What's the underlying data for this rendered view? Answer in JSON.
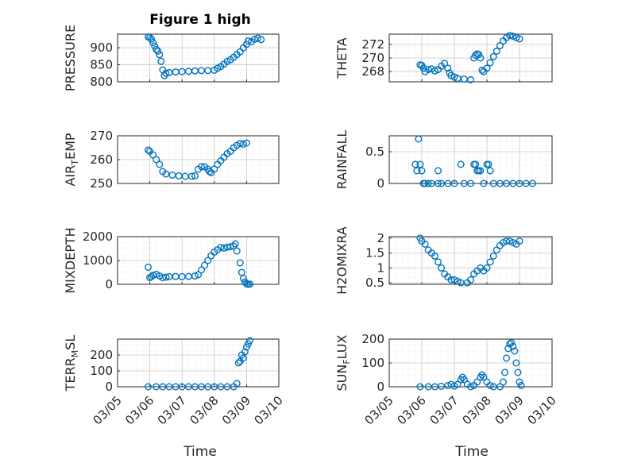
{
  "figure": {
    "title": "Figure 1 high",
    "xlabel": "Time"
  },
  "chart_data": [
    {
      "type": "scatter",
      "ylabel": "PRESSURE",
      "ylim": [
        800,
        940
      ],
      "yticks": [
        800,
        850,
        900
      ],
      "xlim": [
        0,
        5
      ],
      "xticklabels": [
        "03/05",
        "03/06",
        "03/07",
        "03/08",
        "03/09",
        "03/10"
      ],
      "grid": true,
      "marker_color": "#0072BD",
      "points": [
        [
          0.95,
          932
        ],
        [
          1.0,
          930
        ],
        [
          1.05,
          925
        ],
        [
          1.1,
          915
        ],
        [
          1.15,
          905
        ],
        [
          1.2,
          895
        ],
        [
          1.25,
          890
        ],
        [
          1.3,
          880
        ],
        [
          1.35,
          860
        ],
        [
          1.4,
          835
        ],
        [
          1.45,
          818
        ],
        [
          1.5,
          825
        ],
        [
          1.6,
          827
        ],
        [
          1.8,
          829
        ],
        [
          2.0,
          830
        ],
        [
          2.2,
          831
        ],
        [
          2.4,
          832
        ],
        [
          2.6,
          833
        ],
        [
          2.8,
          833
        ],
        [
          3.0,
          834
        ],
        [
          3.1,
          840
        ],
        [
          3.2,
          845
        ],
        [
          3.3,
          852
        ],
        [
          3.4,
          860
        ],
        [
          3.5,
          865
        ],
        [
          3.6,
          872
        ],
        [
          3.7,
          880
        ],
        [
          3.8,
          888
        ],
        [
          3.9,
          900
        ],
        [
          4.0,
          910
        ],
        [
          4.05,
          920
        ],
        [
          4.15,
          918
        ],
        [
          4.25,
          925
        ],
        [
          4.35,
          928
        ],
        [
          4.45,
          924
        ]
      ]
    },
    {
      "type": "scatter",
      "ylabel": "THETA",
      "ylim": [
        266.5,
        273.5
      ],
      "yticks": [
        268,
        270,
        272
      ],
      "xlim": [
        0,
        5
      ],
      "xticklabels": [
        "03/05",
        "03/06",
        "03/07",
        "03/08",
        "03/09",
        "03/10"
      ],
      "grid": true,
      "marker_color": "#0072BD",
      "points": [
        [
          0.95,
          269.0
        ],
        [
          1.0,
          268.9
        ],
        [
          1.05,
          268.5
        ],
        [
          1.1,
          268.0
        ],
        [
          1.2,
          268.3
        ],
        [
          1.3,
          268.4
        ],
        [
          1.4,
          268.1
        ],
        [
          1.5,
          268.3
        ],
        [
          1.6,
          268.8
        ],
        [
          1.7,
          269.2
        ],
        [
          1.8,
          268.5
        ],
        [
          1.85,
          267.8
        ],
        [
          1.9,
          267.4
        ],
        [
          2.0,
          267.2
        ],
        [
          2.1,
          267.0
        ],
        [
          2.3,
          266.9
        ],
        [
          2.5,
          266.8
        ],
        [
          2.6,
          270.0
        ],
        [
          2.65,
          270.4
        ],
        [
          2.7,
          270.6
        ],
        [
          2.75,
          270.5
        ],
        [
          2.8,
          270.0
        ],
        [
          2.85,
          268.2
        ],
        [
          2.9,
          268.0
        ],
        [
          3.0,
          268.5
        ],
        [
          3.1,
          269.3
        ],
        [
          3.2,
          270.2
        ],
        [
          3.3,
          271.0
        ],
        [
          3.4,
          271.8
        ],
        [
          3.5,
          272.5
        ],
        [
          3.6,
          273.0
        ],
        [
          3.7,
          273.3
        ],
        [
          3.8,
          273.2
        ],
        [
          3.9,
          273.0
        ],
        [
          4.0,
          272.8
        ]
      ]
    },
    {
      "type": "scatter",
      "ylabel": "AIR_TEMP",
      "ylim": [
        250,
        270
      ],
      "yticks": [
        250,
        260,
        270
      ],
      "xlim": [
        0,
        5
      ],
      "xticklabels": [
        "03/05",
        "03/06",
        "03/07",
        "03/08",
        "03/09",
        "03/10"
      ],
      "grid": true,
      "marker_color": "#0072BD",
      "points": [
        [
          0.95,
          264
        ],
        [
          1.0,
          263.5
        ],
        [
          1.1,
          262
        ],
        [
          1.2,
          260
        ],
        [
          1.3,
          258
        ],
        [
          1.4,
          255
        ],
        [
          1.5,
          254
        ],
        [
          1.7,
          253.5
        ],
        [
          1.9,
          253.2
        ],
        [
          2.1,
          253
        ],
        [
          2.3,
          253
        ],
        [
          2.4,
          253.2
        ],
        [
          2.5,
          256
        ],
        [
          2.6,
          257
        ],
        [
          2.7,
          257
        ],
        [
          2.8,
          256
        ],
        [
          2.85,
          255
        ],
        [
          2.9,
          254.5
        ],
        [
          3.0,
          256
        ],
        [
          3.1,
          258
        ],
        [
          3.2,
          259.5
        ],
        [
          3.3,
          261
        ],
        [
          3.4,
          262.5
        ],
        [
          3.5,
          263.5
        ],
        [
          3.6,
          265
        ],
        [
          3.7,
          266
        ],
        [
          3.8,
          266.8
        ],
        [
          3.9,
          266.5
        ],
        [
          4.0,
          267
        ]
      ]
    },
    {
      "type": "scatter",
      "ylabel": "RAINFALL",
      "ylim": [
        0,
        0.75
      ],
      "yticks": [
        0,
        0.5
      ],
      "xlim": [
        0,
        5
      ],
      "xticklabels": [
        "03/05",
        "03/06",
        "03/07",
        "03/08",
        "03/09",
        "03/10"
      ],
      "grid": true,
      "marker_color": "#0072BD",
      "points": [
        [
          0.8,
          0.3
        ],
        [
          0.85,
          0.2
        ],
        [
          0.9,
          0.7
        ],
        [
          0.95,
          0.3
        ],
        [
          1.0,
          0.2
        ],
        [
          1.05,
          0
        ],
        [
          1.1,
          0
        ],
        [
          1.2,
          0
        ],
        [
          1.3,
          0
        ],
        [
          1.5,
          0.2
        ],
        [
          1.5,
          0
        ],
        [
          1.6,
          0
        ],
        [
          1.8,
          0
        ],
        [
          2.0,
          0
        ],
        [
          2.2,
          0.3
        ],
        [
          2.3,
          0
        ],
        [
          2.5,
          0
        ],
        [
          2.6,
          0.3
        ],
        [
          2.65,
          0.3
        ],
        [
          2.7,
          0.2
        ],
        [
          2.75,
          0.2
        ],
        [
          2.8,
          0.2
        ],
        [
          2.9,
          0
        ],
        [
          3.0,
          0.3
        ],
        [
          3.05,
          0.3
        ],
        [
          3.1,
          0.2
        ],
        [
          3.2,
          0
        ],
        [
          3.4,
          0
        ],
        [
          3.6,
          0
        ],
        [
          3.8,
          0
        ],
        [
          4.0,
          0
        ],
        [
          4.2,
          0
        ],
        [
          4.4,
          0
        ]
      ]
    },
    {
      "type": "scatter",
      "ylabel": "MIXDEPTH",
      "ylim": [
        0,
        2000
      ],
      "yticks": [
        0,
        1000,
        2000
      ],
      "xlim": [
        0,
        5
      ],
      "xticklabels": [
        "03/05",
        "03/06",
        "03/07",
        "03/08",
        "03/09",
        "03/10"
      ],
      "grid": true,
      "marker_color": "#0072BD",
      "points": [
        [
          0.95,
          720
        ],
        [
          1.0,
          280
        ],
        [
          1.05,
          320
        ],
        [
          1.1,
          380
        ],
        [
          1.2,
          420
        ],
        [
          1.3,
          350
        ],
        [
          1.4,
          280
        ],
        [
          1.5,
          300
        ],
        [
          1.6,
          320
        ],
        [
          1.8,
          330
        ],
        [
          2.0,
          320
        ],
        [
          2.2,
          330
        ],
        [
          2.4,
          350
        ],
        [
          2.5,
          400
        ],
        [
          2.6,
          600
        ],
        [
          2.7,
          800
        ],
        [
          2.8,
          1000
        ],
        [
          2.9,
          1200
        ],
        [
          3.0,
          1350
        ],
        [
          3.1,
          1450
        ],
        [
          3.2,
          1550
        ],
        [
          3.3,
          1520
        ],
        [
          3.4,
          1560
        ],
        [
          3.5,
          1580
        ],
        [
          3.6,
          1600
        ],
        [
          3.65,
          1700
        ],
        [
          3.7,
          1400
        ],
        [
          3.8,
          900
        ],
        [
          3.85,
          500
        ],
        [
          3.9,
          250
        ],
        [
          3.95,
          100
        ],
        [
          4.0,
          20
        ],
        [
          4.05,
          0
        ],
        [
          4.1,
          10
        ]
      ]
    },
    {
      "type": "scatter",
      "ylabel": "H2OMIXRA",
      "ylim": [
        0.45,
        2.05
      ],
      "yticks": [
        0.5,
        1,
        1.5,
        2
      ],
      "xlim": [
        0,
        5
      ],
      "xticklabels": [
        "03/05",
        "03/06",
        "03/07",
        "03/08",
        "03/09",
        "03/10"
      ],
      "grid": true,
      "marker_color": "#0072BD",
      "points": [
        [
          0.95,
          2.0
        ],
        [
          1.0,
          1.9
        ],
        [
          1.1,
          1.8
        ],
        [
          1.2,
          1.6
        ],
        [
          1.3,
          1.5
        ],
        [
          1.4,
          1.4
        ],
        [
          1.5,
          1.2
        ],
        [
          1.6,
          1.0
        ],
        [
          1.7,
          0.8
        ],
        [
          1.8,
          0.7
        ],
        [
          1.9,
          0.6
        ],
        [
          2.0,
          0.6
        ],
        [
          2.1,
          0.55
        ],
        [
          2.2,
          0.5
        ],
        [
          2.4,
          0.5
        ],
        [
          2.5,
          0.6
        ],
        [
          2.6,
          0.8
        ],
        [
          2.7,
          0.9
        ],
        [
          2.8,
          1.0
        ],
        [
          2.9,
          0.9
        ],
        [
          3.0,
          1.0
        ],
        [
          3.1,
          1.2
        ],
        [
          3.2,
          1.4
        ],
        [
          3.3,
          1.6
        ],
        [
          3.4,
          1.75
        ],
        [
          3.5,
          1.85
        ],
        [
          3.6,
          1.9
        ],
        [
          3.7,
          1.9
        ],
        [
          3.8,
          1.85
        ],
        [
          3.9,
          1.8
        ],
        [
          4.0,
          1.9
        ]
      ]
    },
    {
      "type": "scatter",
      "ylabel": "TERR_MSL",
      "ylim": [
        0,
        300
      ],
      "yticks": [
        0,
        100,
        200
      ],
      "xlim": [
        0,
        5
      ],
      "xticklabels": [
        "03/05",
        "03/06",
        "03/07",
        "03/08",
        "03/09",
        "03/10"
      ],
      "grid": true,
      "marker_color": "#0072BD",
      "points": [
        [
          0.95,
          0
        ],
        [
          1.2,
          0
        ],
        [
          1.4,
          0
        ],
        [
          1.6,
          0
        ],
        [
          1.8,
          0
        ],
        [
          2.0,
          0
        ],
        [
          2.2,
          0
        ],
        [
          2.4,
          0
        ],
        [
          2.6,
          0
        ],
        [
          2.8,
          0
        ],
        [
          3.0,
          0
        ],
        [
          3.2,
          0
        ],
        [
          3.4,
          0
        ],
        [
          3.6,
          0
        ],
        [
          3.7,
          20
        ],
        [
          3.75,
          150
        ],
        [
          3.8,
          160
        ],
        [
          3.85,
          200
        ],
        [
          3.9,
          180
        ],
        [
          3.95,
          220
        ],
        [
          4.0,
          250
        ],
        [
          4.05,
          270
        ],
        [
          4.1,
          290
        ]
      ]
    },
    {
      "type": "scatter",
      "ylabel": "SUN_FLUX",
      "ylim": [
        0,
        200
      ],
      "yticks": [
        0,
        100,
        200
      ],
      "xlim": [
        0,
        5
      ],
      "xticklabels": [
        "03/05",
        "03/06",
        "03/07",
        "03/08",
        "03/09",
        "03/10"
      ],
      "grid": true,
      "marker_color": "#0072BD",
      "points": [
        [
          0.95,
          0
        ],
        [
          1.2,
          0
        ],
        [
          1.4,
          0
        ],
        [
          1.6,
          2
        ],
        [
          1.8,
          5
        ],
        [
          1.9,
          10
        ],
        [
          2.0,
          3
        ],
        [
          2.1,
          10
        ],
        [
          2.2,
          30
        ],
        [
          2.25,
          40
        ],
        [
          2.3,
          30
        ],
        [
          2.4,
          10
        ],
        [
          2.5,
          0
        ],
        [
          2.6,
          5
        ],
        [
          2.7,
          20
        ],
        [
          2.8,
          40
        ],
        [
          2.85,
          50
        ],
        [
          2.9,
          40
        ],
        [
          3.0,
          20
        ],
        [
          3.1,
          5
        ],
        [
          3.2,
          0
        ],
        [
          3.4,
          0
        ],
        [
          3.5,
          20
        ],
        [
          3.55,
          60
        ],
        [
          3.6,
          120
        ],
        [
          3.65,
          160
        ],
        [
          3.7,
          180
        ],
        [
          3.75,
          185
        ],
        [
          3.8,
          170
        ],
        [
          3.85,
          150
        ],
        [
          3.9,
          100
        ],
        [
          3.95,
          60
        ],
        [
          4.0,
          20
        ],
        [
          4.05,
          5
        ]
      ]
    }
  ]
}
